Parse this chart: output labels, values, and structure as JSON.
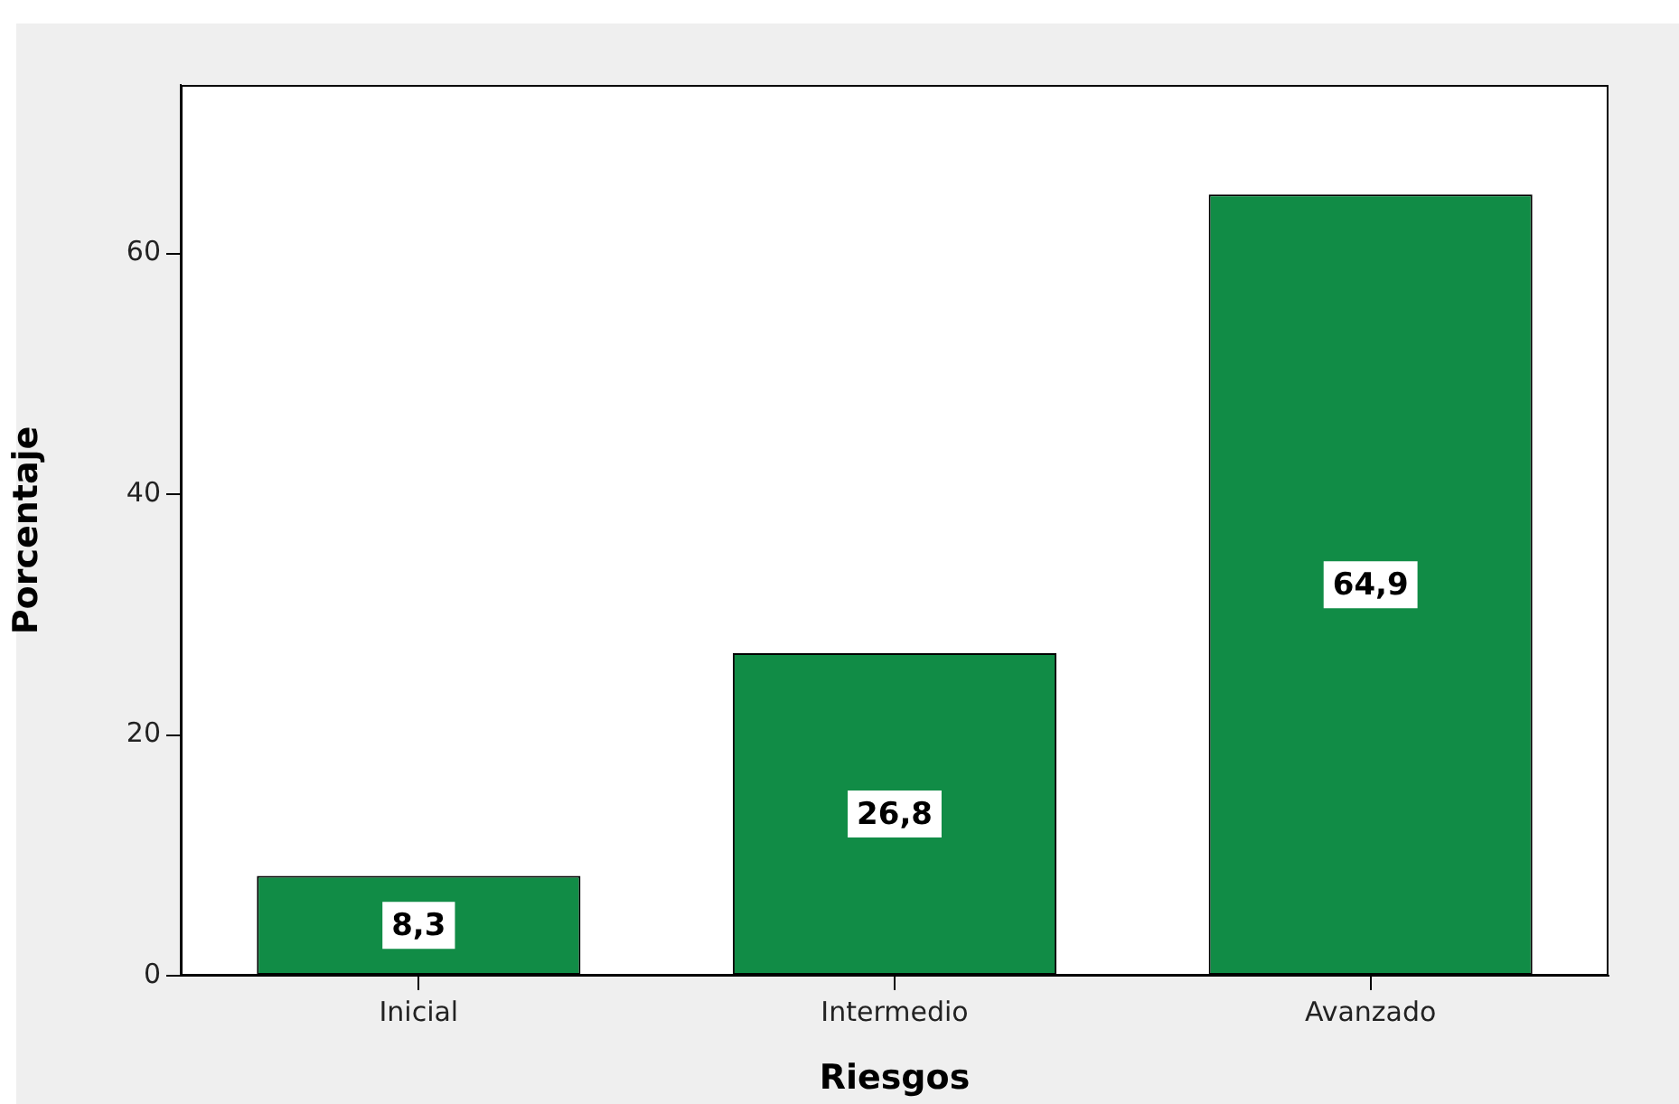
{
  "chart_data": {
    "type": "bar",
    "xlabel": "Riesgos",
    "ylabel": "Porcentaje",
    "categories": [
      "Inicial",
      "Intermedio",
      "Avanzado"
    ],
    "values": [
      8.3,
      26.8,
      64.9
    ],
    "value_labels": [
      "8,3",
      "26,8",
      "64,9"
    ],
    "color": "#118c46",
    "ylim": [
      0,
      74
    ],
    "yticks": [
      0,
      20,
      40,
      60
    ]
  }
}
